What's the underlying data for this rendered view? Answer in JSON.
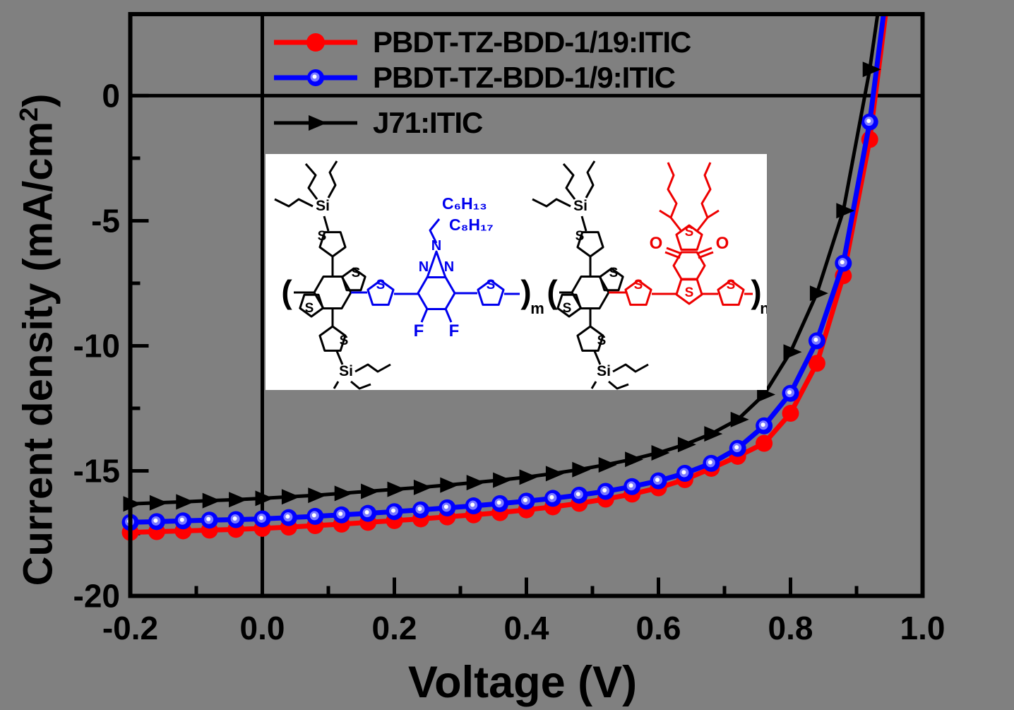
{
  "page": {
    "background_color": "#808080",
    "inset_background": "#ffffff",
    "frame_color": "#000000"
  },
  "chart_data": {
    "type": "line",
    "title": "",
    "xlabel": "Voltage (V)",
    "ylabel": "Current density (mA/cm2)",
    "ylabel_parts": {
      "pre": "Current density (mA/cm",
      "sup": "2",
      "post": ")"
    },
    "xlim": [
      -0.2,
      1.0
    ],
    "ylim": [
      -20,
      3.26
    ],
    "grid": false,
    "legend_position": "inside-top-left",
    "zero_current_line": true,
    "zero_voltage_line": true,
    "x_major_ticks": [
      -0.2,
      0.0,
      0.2,
      0.4,
      0.6,
      0.8,
      1.0
    ],
    "x_tick_labels": [
      "-0.2",
      "0.0",
      "0.2",
      "0.4",
      "0.6",
      "0.8",
      "1.0"
    ],
    "x_minor_ticks": [
      -0.1,
      0.1,
      0.3,
      0.5,
      0.7,
      0.9
    ],
    "y_major_ticks": [
      0,
      -5,
      -10,
      -15,
      -20
    ],
    "y_tick_labels": [
      "0",
      "-5",
      "-10",
      "-15",
      "-20"
    ],
    "y_minor_ticks": [
      -2.5,
      -7.5,
      -12.5,
      -17.5
    ],
    "series": [
      {
        "name": "PBDT-TZ-BDD-1/19:ITIC",
        "color": "#ff0000",
        "marker": "filled-circle",
        "points": [
          [
            -0.2,
            -17.46
          ],
          [
            -0.16,
            -17.43
          ],
          [
            -0.12,
            -17.4
          ],
          [
            -0.08,
            -17.37
          ],
          [
            -0.04,
            -17.34
          ],
          [
            0.0,
            -17.3
          ],
          [
            0.04,
            -17.25
          ],
          [
            0.08,
            -17.19
          ],
          [
            0.12,
            -17.13
          ],
          [
            0.16,
            -17.06
          ],
          [
            0.2,
            -16.99
          ],
          [
            0.24,
            -16.92
          ],
          [
            0.28,
            -16.84
          ],
          [
            0.32,
            -16.76
          ],
          [
            0.36,
            -16.67
          ],
          [
            0.4,
            -16.56
          ],
          [
            0.44,
            -16.44
          ],
          [
            0.48,
            -16.3
          ],
          [
            0.52,
            -16.13
          ],
          [
            0.56,
            -15.93
          ],
          [
            0.6,
            -15.68
          ],
          [
            0.64,
            -15.35
          ],
          [
            0.68,
            -14.9
          ],
          [
            0.72,
            -14.42
          ],
          [
            0.76,
            -13.9
          ],
          [
            0.8,
            -12.7
          ],
          [
            0.84,
            -10.7
          ],
          [
            0.88,
            -7.2
          ],
          [
            0.92,
            -1.75
          ]
        ],
        "line_end": [
          0.944,
          3.26
        ],
        "voc_estimate_v": 0.93,
        "jsc_estimate": -17.3
      },
      {
        "name": "PBDT-TZ-BDD-1/9:ITIC",
        "color": "#0000ff",
        "marker": "sphere-circle",
        "points": [
          [
            -0.2,
            -17.06
          ],
          [
            -0.16,
            -17.03
          ],
          [
            -0.12,
            -17.0
          ],
          [
            -0.08,
            -16.97
          ],
          [
            -0.04,
            -16.95
          ],
          [
            0.0,
            -16.92
          ],
          [
            0.04,
            -16.87
          ],
          [
            0.08,
            -16.82
          ],
          [
            0.12,
            -16.76
          ],
          [
            0.16,
            -16.7
          ],
          [
            0.2,
            -16.63
          ],
          [
            0.24,
            -16.56
          ],
          [
            0.28,
            -16.48
          ],
          [
            0.32,
            -16.4
          ],
          [
            0.36,
            -16.31
          ],
          [
            0.4,
            -16.21
          ],
          [
            0.44,
            -16.1
          ],
          [
            0.48,
            -15.97
          ],
          [
            0.52,
            -15.82
          ],
          [
            0.56,
            -15.63
          ],
          [
            0.6,
            -15.4
          ],
          [
            0.64,
            -15.1
          ],
          [
            0.68,
            -14.7
          ],
          [
            0.72,
            -14.1
          ],
          [
            0.76,
            -13.2
          ],
          [
            0.8,
            -11.9
          ],
          [
            0.84,
            -9.8
          ],
          [
            0.88,
            -6.7
          ],
          [
            0.92,
            -1.05
          ]
        ],
        "line_end": [
          0.941,
          3.26
        ],
        "voc_estimate_v": 0.926,
        "jsc_estimate": -16.9
      },
      {
        "name": "J71:ITIC",
        "color": "#000000",
        "marker": "triangle-right",
        "points": [
          [
            -0.2,
            -16.32
          ],
          [
            -0.16,
            -16.28
          ],
          [
            -0.12,
            -16.24
          ],
          [
            -0.08,
            -16.19
          ],
          [
            -0.04,
            -16.15
          ],
          [
            0.0,
            -16.1
          ],
          [
            0.04,
            -16.04
          ],
          [
            0.08,
            -15.98
          ],
          [
            0.12,
            -15.9
          ],
          [
            0.16,
            -15.82
          ],
          [
            0.2,
            -15.74
          ],
          [
            0.24,
            -15.66
          ],
          [
            0.28,
            -15.57
          ],
          [
            0.32,
            -15.47
          ],
          [
            0.36,
            -15.37
          ],
          [
            0.4,
            -15.25
          ],
          [
            0.44,
            -15.11
          ],
          [
            0.48,
            -14.95
          ],
          [
            0.52,
            -14.76
          ],
          [
            0.56,
            -14.54
          ],
          [
            0.6,
            -14.28
          ],
          [
            0.64,
            -13.95
          ],
          [
            0.68,
            -13.52
          ],
          [
            0.72,
            -12.95
          ],
          [
            0.76,
            -11.95
          ],
          [
            0.8,
            -10.25
          ],
          [
            0.84,
            -7.9
          ],
          [
            0.88,
            -4.6
          ],
          [
            0.92,
            1.05
          ]
        ],
        "line_end": [
          0.932,
          3.26
        ],
        "voc_estimate_v": 0.912,
        "jsc_estimate": -16.1
      }
    ]
  },
  "inset": {
    "description": "chemical structure of PBDT-TZ-BDD polymer",
    "colors": {
      "bdt_unit": "#000000",
      "triazole_unit": "#0000ee",
      "bdd_unit": "#ee0000"
    },
    "labels": {
      "sulfur": "S",
      "silicon": "Si",
      "nitrogen": "N",
      "fluorine": "F",
      "oxygen": "O",
      "chain_c6": "C₆H₁₃",
      "chain_c8": "C₈H₁₇",
      "bracket_open": "(",
      "bracket_close": ")",
      "repeat_m": "m",
      "repeat_n": "n"
    }
  }
}
